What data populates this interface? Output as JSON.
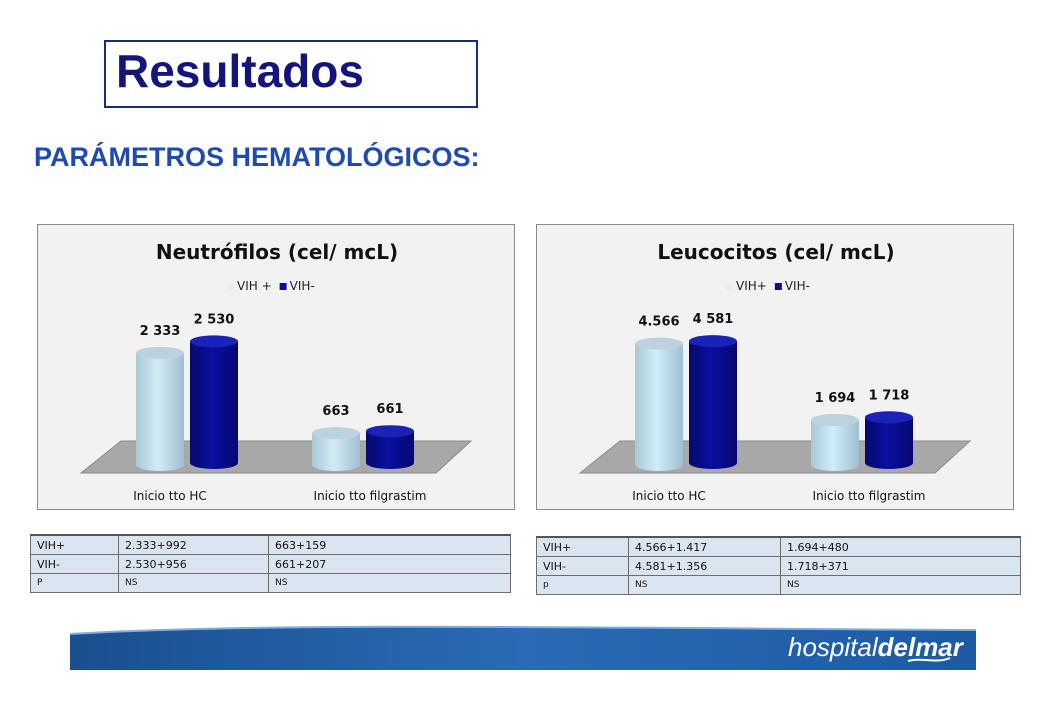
{
  "slide": {
    "title": "Resultados",
    "subtitle": "PARÁMETROS HEMATOLÓGICOS:"
  },
  "chart_data": [
    {
      "type": "bar",
      "title": "Neutrófilos (cel/ mcL)",
      "categories": [
        "Inicio tto HC",
        "Inicio tto filgrastim"
      ],
      "series": [
        {
          "name": "VIH +",
          "values": [
            2333,
            663
          ],
          "labels": [
            "2 333",
            "663"
          ],
          "color": "#d4ebf7"
        },
        {
          "name": "VIH-",
          "values": [
            2530,
            661
          ],
          "labels": [
            "2 530",
            "661"
          ],
          "color": "#0a0fa0"
        }
      ],
      "ylim": [
        0,
        2600
      ],
      "legend": "top",
      "grid": false
    },
    {
      "type": "bar",
      "title": "Leucocitos (cel/ mcL)",
      "categories": [
        "Inicio tto HC",
        "Inicio tto filgrastim"
      ],
      "series": [
        {
          "name": "VIH+",
          "values": [
            4566,
            1694
          ],
          "labels": [
            "4.566",
            "1 694"
          ],
          "color": "#cfeefa"
        },
        {
          "name": "VIH-",
          "values": [
            4581,
            1718
          ],
          "labels": [
            "4 581",
            "1 718"
          ],
          "color": "#0a0fa0"
        }
      ],
      "ylim": [
        0,
        4700
      ],
      "legend": "top",
      "grid": false
    }
  ],
  "tables": [
    {
      "rows": [
        [
          "VIH+",
          "2.333+992",
          "663+159"
        ],
        [
          "VIH-",
          "2.530+956",
          "661+207"
        ],
        [
          "P",
          "NS",
          "NS"
        ]
      ]
    },
    {
      "rows": [
        [
          "VIH+",
          "4.566+1.417",
          "1.694+480"
        ],
        [
          "VIH-",
          "4.581+1.356",
          "1.718+371"
        ],
        [
          "p",
          "NS",
          "NS"
        ]
      ]
    }
  ],
  "footer": {
    "logo_regular": "hospital",
    "logo_bold": "delmar"
  }
}
